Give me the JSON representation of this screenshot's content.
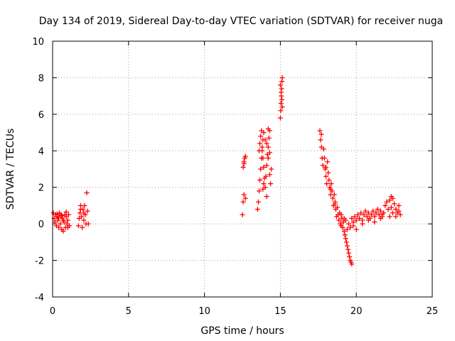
{
  "chart_data": {
    "type": "scatter",
    "title": "Day 134 of 2019, Sidereal Day-to-day VTEC variation (SDTVAR) for receiver nuga",
    "xlabel": "GPS time / hours",
    "ylabel": "SDTVAR / TECUs",
    "xlim": [
      0,
      25
    ],
    "ylim": [
      -4,
      10
    ],
    "xticks": [
      0,
      5,
      10,
      15,
      20,
      25
    ],
    "yticks": [
      -4,
      -2,
      0,
      2,
      4,
      6,
      8,
      10
    ],
    "x_tick_labels": [
      "0",
      "5",
      "10",
      "15",
      "20",
      "25"
    ],
    "y_tick_labels": [
      "-4",
      "-2",
      "0",
      "2",
      "4",
      "6",
      "8",
      "10"
    ],
    "grid": true,
    "marker": "+",
    "series": [
      {
        "name": "SDTVAR",
        "color": "#ff0000",
        "points": [
          [
            0.05,
            0.6
          ],
          [
            0.1,
            0.3
          ],
          [
            0.15,
            0.1
          ],
          [
            0.2,
            0.5
          ],
          [
            0.25,
            -0.1
          ],
          [
            0.3,
            0.4
          ],
          [
            0.35,
            0.2
          ],
          [
            0.4,
            -0.2
          ],
          [
            0.45,
            0.6
          ],
          [
            0.5,
            0.0
          ],
          [
            0.55,
            0.5
          ],
          [
            0.6,
            -0.3
          ],
          [
            0.65,
            0.3
          ],
          [
            0.7,
            -0.4
          ],
          [
            0.75,
            0.1
          ],
          [
            0.8,
            0.5
          ],
          [
            0.85,
            -0.2
          ],
          [
            0.9,
            0.4
          ],
          [
            0.95,
            0.0
          ],
          [
            1.0,
            0.2
          ],
          [
            1.05,
            0.5
          ],
          [
            1.1,
            -0.1
          ],
          [
            0.3,
            0.55
          ],
          [
            0.6,
            0.45
          ],
          [
            0.9,
            0.65
          ],
          [
            0.7,
            0.2
          ],
          [
            0.4,
            0.35
          ],
          [
            1.0,
            -0.2
          ],
          [
            1.7,
            -0.1
          ],
          [
            1.75,
            0.3
          ],
          [
            1.8,
            0.6
          ],
          [
            1.85,
            1.0
          ],
          [
            1.9,
            0.4
          ],
          [
            1.95,
            -0.2
          ],
          [
            2.0,
            0.8
          ],
          [
            2.05,
            0.2
          ],
          [
            2.1,
            1.0
          ],
          [
            2.15,
            0.5
          ],
          [
            2.2,
            0.0
          ],
          [
            2.25,
            1.7
          ],
          [
            2.3,
            0.7
          ],
          [
            2.35,
            0.0
          ],
          [
            1.85,
            0.8
          ],
          [
            2.05,
            0.6
          ],
          [
            12.5,
            0.5
          ],
          [
            12.55,
            1.2
          ],
          [
            12.6,
            1.6
          ],
          [
            12.55,
            3.1
          ],
          [
            12.6,
            3.4
          ],
          [
            12.65,
            3.6
          ],
          [
            12.7,
            3.7
          ],
          [
            12.6,
            3.3
          ],
          [
            12.7,
            1.4
          ],
          [
            13.5,
            0.8
          ],
          [
            13.55,
            1.2
          ],
          [
            13.6,
            1.8
          ],
          [
            13.65,
            2.4
          ],
          [
            13.7,
            3.0
          ],
          [
            13.75,
            3.6
          ],
          [
            13.8,
            4.0
          ],
          [
            13.85,
            4.6
          ],
          [
            13.9,
            5.0
          ],
          [
            13.6,
            4.0
          ],
          [
            13.65,
            4.4
          ],
          [
            13.7,
            4.8
          ],
          [
            13.75,
            5.1
          ],
          [
            13.8,
            4.2
          ],
          [
            13.85,
            3.6
          ],
          [
            13.9,
            3.1
          ],
          [
            13.95,
            2.5
          ],
          [
            14.0,
            2.0
          ],
          [
            14.05,
            2.6
          ],
          [
            14.1,
            3.2
          ],
          [
            14.15,
            3.8
          ],
          [
            14.2,
            4.2
          ],
          [
            14.25,
            4.7
          ],
          [
            14.3,
            5.1
          ],
          [
            14.1,
            4.4
          ],
          [
            14.2,
            3.6
          ],
          [
            14.3,
            2.7
          ],
          [
            14.35,
            2.2
          ],
          [
            14.4,
            3.0
          ],
          [
            14.0,
            4.6
          ],
          [
            14.2,
            5.2
          ],
          [
            13.9,
            2.2
          ],
          [
            14.1,
            1.5
          ],
          [
            13.85,
            1.9
          ],
          [
            14.3,
            3.9
          ],
          [
            15.0,
            5.8
          ],
          [
            15.02,
            6.2
          ],
          [
            15.04,
            6.6
          ],
          [
            15.06,
            7.0
          ],
          [
            15.08,
            7.4
          ],
          [
            15.1,
            7.8
          ],
          [
            15.12,
            8.0
          ],
          [
            15.0,
            7.6
          ],
          [
            15.05,
            7.2
          ],
          [
            15.1,
            6.8
          ],
          [
            15.12,
            6.4
          ],
          [
            17.6,
            5.1
          ],
          [
            17.65,
            4.6
          ],
          [
            17.7,
            4.2
          ],
          [
            17.75,
            3.6
          ],
          [
            17.8,
            3.2
          ],
          [
            17.85,
            4.1
          ],
          [
            17.9,
            3.6
          ],
          [
            17.95,
            3.0
          ],
          [
            18.0,
            2.6
          ],
          [
            18.05,
            2.2
          ],
          [
            18.1,
            3.4
          ],
          [
            18.15,
            2.8
          ],
          [
            18.2,
            2.4
          ],
          [
            18.25,
            2.0
          ],
          [
            18.3,
            1.6
          ],
          [
            18.35,
            2.2
          ],
          [
            18.4,
            1.8
          ],
          [
            18.45,
            1.4
          ],
          [
            18.5,
            1.0
          ],
          [
            18.55,
            1.6
          ],
          [
            18.6,
            1.2
          ],
          [
            18.65,
            0.8
          ],
          [
            18.7,
            0.4
          ],
          [
            18.75,
            0.9
          ],
          [
            18.8,
            0.5
          ],
          [
            18.85,
            0.2
          ],
          [
            18.9,
            0.6
          ],
          [
            18.95,
            0.0
          ],
          [
            19.0,
            -0.1
          ],
          [
            19.05,
            0.3
          ],
          [
            19.1,
            -0.2
          ],
          [
            19.15,
            0.1
          ],
          [
            19.2,
            -0.4
          ],
          [
            19.25,
            -0.6
          ],
          [
            19.3,
            -0.8
          ],
          [
            19.35,
            -1.0
          ],
          [
            19.4,
            -1.2
          ],
          [
            19.45,
            -1.4
          ],
          [
            19.5,
            -1.6
          ],
          [
            19.55,
            -1.8
          ],
          [
            19.6,
            -2.0
          ],
          [
            19.65,
            -2.1
          ],
          [
            19.7,
            -2.2
          ],
          [
            19.3,
            0.2
          ],
          [
            19.4,
            -0.3
          ],
          [
            19.5,
            0.0
          ],
          [
            19.6,
            -0.2
          ],
          [
            19.7,
            0.3
          ],
          [
            19.8,
            0.1
          ],
          [
            19.9,
            0.4
          ],
          [
            20.0,
            0.2
          ],
          [
            20.1,
            0.5
          ],
          [
            20.2,
            0.3
          ],
          [
            20.3,
            0.6
          ],
          [
            20.4,
            0.2
          ],
          [
            20.5,
            0.5
          ],
          [
            20.6,
            0.7
          ],
          [
            20.7,
            0.4
          ],
          [
            20.8,
            0.6
          ],
          [
            20.9,
            0.3
          ],
          [
            21.0,
            0.5
          ],
          [
            21.1,
            0.7
          ],
          [
            21.2,
            0.4
          ],
          [
            21.3,
            0.6
          ],
          [
            21.4,
            0.8
          ],
          [
            21.5,
            0.5
          ],
          [
            21.6,
            0.7
          ],
          [
            21.7,
            0.4
          ],
          [
            21.8,
            0.6
          ],
          [
            21.9,
            1.0
          ],
          [
            22.0,
            1.2
          ],
          [
            22.1,
            0.8
          ],
          [
            22.2,
            1.3
          ],
          [
            22.3,
            1.5
          ],
          [
            22.4,
            1.4
          ],
          [
            22.5,
            1.1
          ],
          [
            22.6,
            0.8
          ],
          [
            22.7,
            0.6
          ],
          [
            22.8,
            1.0
          ],
          [
            22.9,
            0.5
          ],
          [
            22.2,
            0.4
          ],
          [
            22.4,
            0.6
          ],
          [
            22.6,
            0.4
          ],
          [
            22.3,
            0.9
          ],
          [
            21.7,
            0.5
          ],
          [
            22.8,
            0.7
          ],
          [
            18.3,
            1.9
          ],
          [
            18.6,
            1.1
          ],
          [
            19.0,
            0.5
          ],
          [
            19.2,
            0.3
          ],
          [
            19.8,
            -0.1
          ],
          [
            20.0,
            -0.3
          ],
          [
            20.4,
            0.0
          ],
          [
            20.8,
            0.2
          ],
          [
            21.2,
            0.1
          ],
          [
            21.6,
            0.3
          ],
          [
            17.7,
            4.9
          ],
          [
            18.0,
            3.1
          ]
        ]
      }
    ]
  }
}
